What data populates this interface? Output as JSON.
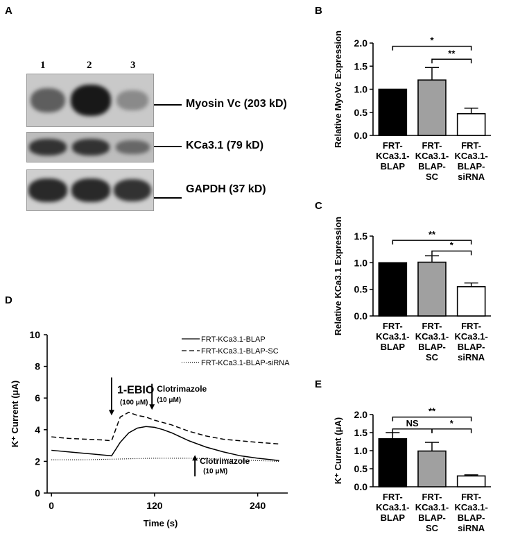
{
  "panels": {
    "A": {
      "letter": "A",
      "lanes": [
        "1",
        "2",
        "3"
      ],
      "bands": [
        {
          "label": "Myosin Vc (203 kD)",
          "intensity": [
            0.55,
            0.95,
            0.3
          ]
        },
        {
          "label": "KCa3.1 (79 kD)",
          "intensity": [
            0.8,
            0.8,
            0.5
          ]
        },
        {
          "label": "GAPDH (37 kD)",
          "intensity": [
            0.85,
            0.85,
            0.8
          ]
        }
      ]
    }
  },
  "chart_data": [
    {
      "panel": "B",
      "type": "bar",
      "categories": [
        [
          "FRT-",
          "KCa3.1-",
          "BLAP"
        ],
        [
          "FRT-",
          "KCa3.1-",
          "BLAP-",
          "SC"
        ],
        [
          "FRT-",
          "KCa3.1-",
          "BLAP-",
          "siRNA"
        ]
      ],
      "values": [
        1.0,
        1.2,
        0.47
      ],
      "errors": [
        0,
        0.27,
        0.12
      ],
      "colors": [
        "#000000",
        "#a0a0a0",
        "#ffffff"
      ],
      "ylabel": "Relative MyoVc Expression",
      "ylim": [
        0,
        2.0
      ],
      "yticks": [
        "0.0",
        "0.5",
        "1.0",
        "1.5",
        "2.0"
      ],
      "brackets": [
        {
          "from": 0,
          "to": 2,
          "label": "*",
          "level": 1.93
        },
        {
          "from": 1,
          "to": 2,
          "label": "**",
          "level": 1.65
        }
      ]
    },
    {
      "panel": "C",
      "type": "bar",
      "categories": [
        [
          "FRT-",
          "KCa3.1-",
          "BLAP"
        ],
        [
          "FRT-",
          "KCa3.1-",
          "BLAP-",
          "SC"
        ],
        [
          "FRT-",
          "KCa3.1-",
          "BLAP-",
          "siRNA"
        ]
      ],
      "values": [
        1.0,
        1.01,
        0.55
      ],
      "errors": [
        0,
        0.12,
        0.07
      ],
      "colors": [
        "#000000",
        "#a0a0a0",
        "#ffffff"
      ],
      "ylabel": "Relative KCa3.1 Expression",
      "ylim": [
        0,
        1.5
      ],
      "yticks": [
        "0.0",
        "0.5",
        "1.0",
        "1.5"
      ],
      "brackets": [
        {
          "from": 0,
          "to": 2,
          "label": "**",
          "level": 1.42
        },
        {
          "from": 1,
          "to": 2,
          "label": "*",
          "level": 1.22
        }
      ]
    },
    {
      "panel": "E",
      "type": "bar",
      "categories": [
        [
          "FRT-",
          "KCa3.1-",
          "BLAP"
        ],
        [
          "FRT-",
          "KCa3.1-",
          "BLAP-",
          "SC"
        ],
        [
          "FRT-",
          "KCa3.1-",
          "BLAP-",
          "siRNA"
        ]
      ],
      "values": [
        1.33,
        0.99,
        0.3
      ],
      "errors": [
        0.17,
        0.24,
        0.03
      ],
      "colors": [
        "#000000",
        "#a0a0a0",
        "#ffffff"
      ],
      "ylabel": "K⁺ Current (μA)",
      "ylim": [
        0,
        2.0
      ],
      "yticks": [
        "0.0",
        "0.5",
        "1.0",
        "1.5",
        "2.0"
      ],
      "brackets": [
        {
          "from": 0,
          "to": 2,
          "label": "**",
          "level": 1.93
        },
        {
          "from": 0,
          "to": 1,
          "label": "NS",
          "level": 1.6
        },
        {
          "from": 1,
          "to": 2,
          "label": "*",
          "level": 1.6
        }
      ]
    },
    {
      "panel": "D",
      "type": "line",
      "xlabel": "Time (s)",
      "ylabel": "K⁺ Current (μA)",
      "xlim": [
        -5,
        275
      ],
      "ylim": [
        0,
        10
      ],
      "xticks": [
        0,
        120,
        240
      ],
      "yticks": [
        0,
        2,
        4,
        6,
        8,
        10
      ],
      "series": [
        {
          "name": "FRT-KCa3.1-BLAP",
          "dash": "",
          "x": [
            0,
            20,
            40,
            60,
            70,
            80,
            90,
            100,
            110,
            120,
            130,
            140,
            160,
            180,
            200,
            220,
            240,
            265
          ],
          "y": [
            2.7,
            2.6,
            2.5,
            2.4,
            2.35,
            3.2,
            3.8,
            4.1,
            4.2,
            4.15,
            4.0,
            3.8,
            3.3,
            2.9,
            2.6,
            2.35,
            2.2,
            2.05
          ]
        },
        {
          "name": "FRT-KCa3.1-BLAP-SC",
          "dash": "7,4",
          "x": [
            0,
            20,
            40,
            60,
            70,
            80,
            90,
            100,
            110,
            120,
            140,
            160,
            180,
            200,
            220,
            240,
            265
          ],
          "y": [
            3.55,
            3.45,
            3.4,
            3.35,
            3.3,
            4.8,
            5.1,
            4.9,
            4.8,
            4.6,
            4.3,
            3.9,
            3.6,
            3.4,
            3.3,
            3.2,
            3.1
          ]
        },
        {
          "name": "FRT-KCa3.1-BLAP-siRNA",
          "dash": "1,2",
          "x": [
            0,
            40,
            80,
            120,
            160,
            200,
            240,
            265
          ],
          "y": [
            2.1,
            2.1,
            2.15,
            2.2,
            2.2,
            2.15,
            2.05,
            2.0
          ]
        }
      ],
      "annotations": [
        {
          "text": "1-EBIO",
          "sub": "(100 μM)",
          "x": 70,
          "arrow": "down"
        },
        {
          "text": "Clotrimazole",
          "sub": "(10 μM)",
          "x": 117,
          "arrow": "down"
        },
        {
          "text": "Clotrimazole",
          "sub": "(10 μM)",
          "x": 167,
          "arrow": "up"
        }
      ]
    }
  ]
}
